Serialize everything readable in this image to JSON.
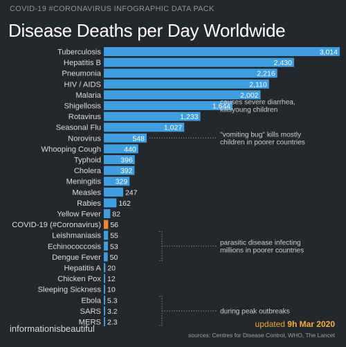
{
  "header": {
    "pack": "COVID-19 #CORONAVIRUS INFOGRAPHIC DATA PACK",
    "title": "Disease Deaths per Day Worldwide"
  },
  "chart_data": {
    "type": "bar",
    "orientation": "horizontal",
    "title": "Disease Deaths per Day Worldwide",
    "xlim": [
      0,
      3014
    ],
    "grid": false,
    "colors": {
      "bar": "#3f9ee0",
      "highlight": "#e8893a",
      "background": "#24282c"
    },
    "highlight_category": "COVID-19 (#Coronavirus)",
    "categories": [
      "Tuberculosis",
      "Hepatitis B",
      "Pneumonia",
      "HIV / AIDS",
      "Malaria",
      "Shigellosis",
      "Rotavirus",
      "Seasonal Flu",
      "Norovirus",
      "Whooping Cough",
      "Typhoid",
      "Cholera",
      "Meningitis",
      "Measles",
      "Rabies",
      "Yellow Fever",
      "COVID-19 (#Coronavirus)",
      "Leishmaniasis",
      "Echinococcosis",
      "Dengue Fever",
      "Hepatitis A",
      "Chicken Pox",
      "Sleeping Sickness",
      "Ebola",
      "SARS",
      "MERS"
    ],
    "values": [
      3014,
      2430,
      2216,
      2110,
      2002,
      1644,
      1233,
      1027,
      548,
      440,
      396,
      392,
      329,
      247,
      162,
      82,
      56,
      55,
      53,
      50,
      20,
      12,
      10,
      5.3,
      3.2,
      2.3
    ],
    "labels": [
      "3,014",
      "2,430",
      "2,216",
      "2,110",
      "2,002",
      "1,644",
      "1,233",
      "1,027",
      "548",
      "440",
      "396",
      "392",
      "329",
      "247",
      "162",
      "82",
      "56",
      "55",
      "53",
      "50",
      "20",
      "12",
      "10",
      "5.3",
      "3.2",
      "2.3"
    ],
    "annotations": [
      {
        "text": [
          "causes severe diarrhea,",
          "killsyoung children"
        ],
        "target": "Shigellosis"
      },
      {
        "text": [
          "\"vomiting bug\" kills mostly",
          "children in poorer countries"
        ],
        "target": "Norovirus"
      },
      {
        "text": [
          "parasitic disease infecting",
          "millions in poorer countries"
        ],
        "targets": [
          "Leishmaniasis",
          "Echinococcosis",
          "Dengue Fever"
        ]
      },
      {
        "text": [
          "during peak outbreaks"
        ],
        "targets": [
          "Ebola",
          "SARS",
          "MERS"
        ]
      }
    ]
  },
  "footer": {
    "brand": "informationisbeautiful",
    "updated_prefix": "updated",
    "updated_date": "9h Mar 2020",
    "sources": "sources: Centres for Disease Control, WHO, The Lancet"
  }
}
